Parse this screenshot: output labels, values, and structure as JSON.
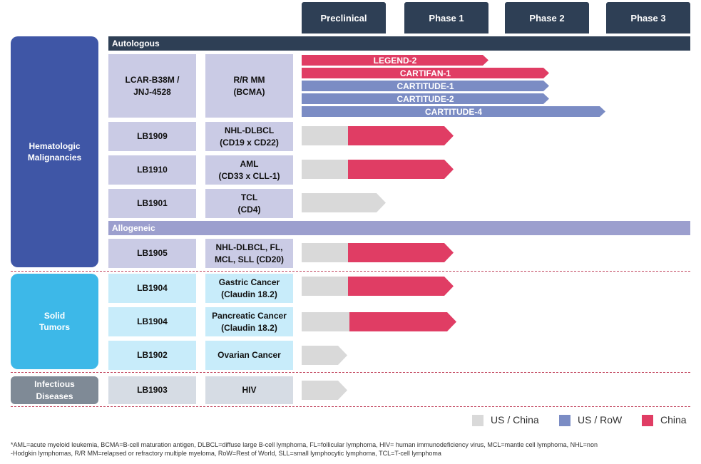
{
  "phases": [
    "Preclinical",
    "Phase 1",
    "Phase 2",
    "Phase 3"
  ],
  "categories": {
    "hematologic": {
      "line1": "Hematologic",
      "line2": "Malignancies"
    },
    "solid": {
      "line1": "Solid",
      "line2": "Tumors"
    },
    "infectious": {
      "line1": "Infectious",
      "line2": "Diseases"
    }
  },
  "sections": {
    "autologous": "Autologous",
    "allogeneic": "Allogeneic"
  },
  "programs": [
    {
      "name1": "LCAR-B38M /",
      "name2": "JNJ-4528",
      "ind1": "R/R MM",
      "ind2": "(BCMA)"
    },
    {
      "name1": "LB1909",
      "name2": "",
      "ind1": "NHL-DLBCL",
      "ind2": "(CD19 x CD22)"
    },
    {
      "name1": "LB1910",
      "name2": "",
      "ind1": "AML",
      "ind2": "(CD33 x CLL-1)"
    },
    {
      "name1": "LB1901",
      "name2": "",
      "ind1": "TCL",
      "ind2": "(CD4)"
    },
    {
      "name1": "LB1905",
      "name2": "",
      "ind1": "NHL-DLBCL, FL,",
      "ind2": "MCL, SLL (CD20)"
    },
    {
      "name1": "LB1904",
      "name2": "",
      "ind1": "Gastric Cancer",
      "ind2": "(Claudin 18.2)"
    },
    {
      "name1": "LB1904",
      "name2": "",
      "ind1": "Pancreatic Cancer",
      "ind2": "(Claudin 18.2)"
    },
    {
      "name1": "LB1902",
      "name2": "",
      "ind1": "Ovarian Cancer",
      "ind2": ""
    },
    {
      "name1": "LB1903",
      "name2": "",
      "ind1": "HIV",
      "ind2": ""
    }
  ],
  "trials": [
    "LEGEND-2",
    "CARTIFAN-1",
    "CARTITUDE-1",
    "CARTITUDE-2",
    "CARTITUDE-4"
  ],
  "legend": {
    "us_china": "US / China",
    "us_row": "US / RoW",
    "china": "China"
  },
  "colors": {
    "us_china": "#d9d9d9",
    "us_row": "#7b8cc4",
    "china": "#e03d64",
    "phase_header": "#2e3f55",
    "hematologic": "#3f56a6",
    "solid": "#3db8e8",
    "infectious": "#7f8a96"
  },
  "footnote": {
    "line1": "*AML=acute myeloid leukemia, BCMA=B-cell maturation antigen, DLBCL=diffuse large B-cell lymphoma, FL=follicular lymphoma, HIV= human immunodeficiency virus, MCL=mantle cell lymphoma, NHL=non",
    "line2": "-Hodgkin lymphomas, R/R MM=relapsed or refractory multiple myeloma, RoW=Rest of World, SLL=small lymphocytic lymphoma, TCL=T-cell lymphoma"
  }
}
